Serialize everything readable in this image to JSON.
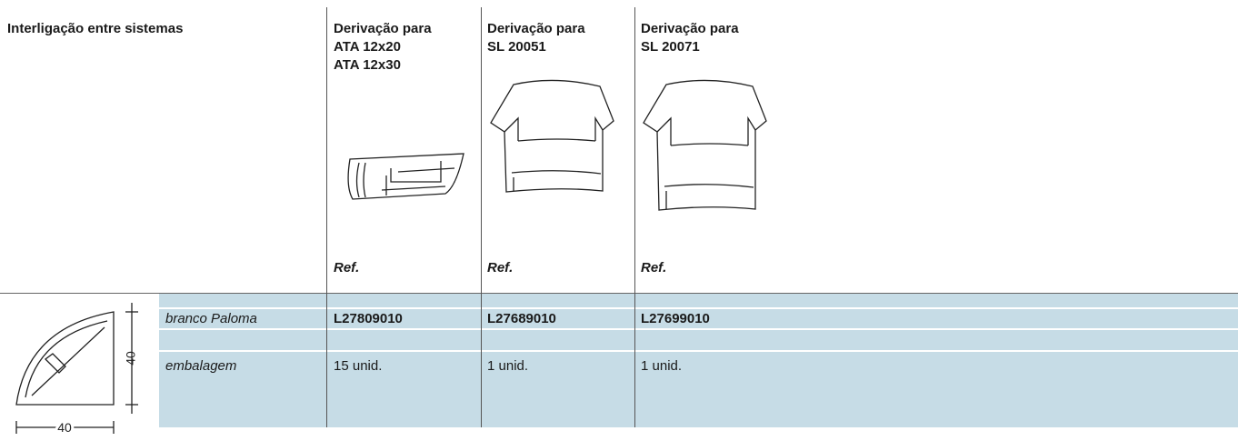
{
  "header": {
    "title": "Interligação entre sistemas"
  },
  "columns": [
    {
      "title": [
        "Derivação para",
        "ATA 12x20",
        "ATA 12x30"
      ],
      "ref": "Ref."
    },
    {
      "title": [
        "Derivação para",
        "SL 20051"
      ],
      "ref": "Ref."
    },
    {
      "title": [
        "Derivação para",
        "SL 20071"
      ],
      "ref": "Ref."
    }
  ],
  "table": {
    "rows": [
      [
        "branco Paloma",
        "L27809010",
        "L27689010",
        "L27699010"
      ],
      [
        "embalagem",
        "15 unid.",
        "1 unid.",
        "1 unid."
      ]
    ]
  },
  "dimensions": {
    "height": "40",
    "width": "40"
  }
}
